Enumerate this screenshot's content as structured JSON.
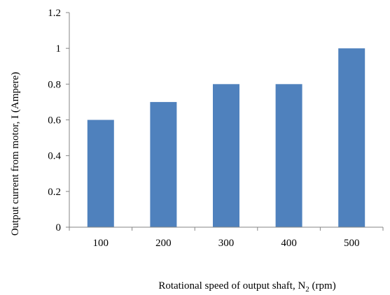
{
  "chart_data": {
    "type": "bar",
    "categories": [
      "100",
      "200",
      "300",
      "400",
      "500"
    ],
    "values": [
      0.6,
      0.7,
      0.8,
      0.8,
      1.0
    ],
    "title": "",
    "xlabel": {
      "prefix": "Rotational speed of output shaft, N",
      "subscript": "2",
      "suffix": " (rpm)"
    },
    "ylabel": "Output current from motor, I (Ampere)",
    "ylim": [
      0,
      1.2
    ],
    "yticks": [
      "0",
      "0.2",
      "0.4",
      "0.6",
      "0.8",
      "1",
      "1.2"
    ],
    "bar_color": "#4f81bd",
    "axis_color": "#868686",
    "grid": false,
    "legend": "none"
  }
}
